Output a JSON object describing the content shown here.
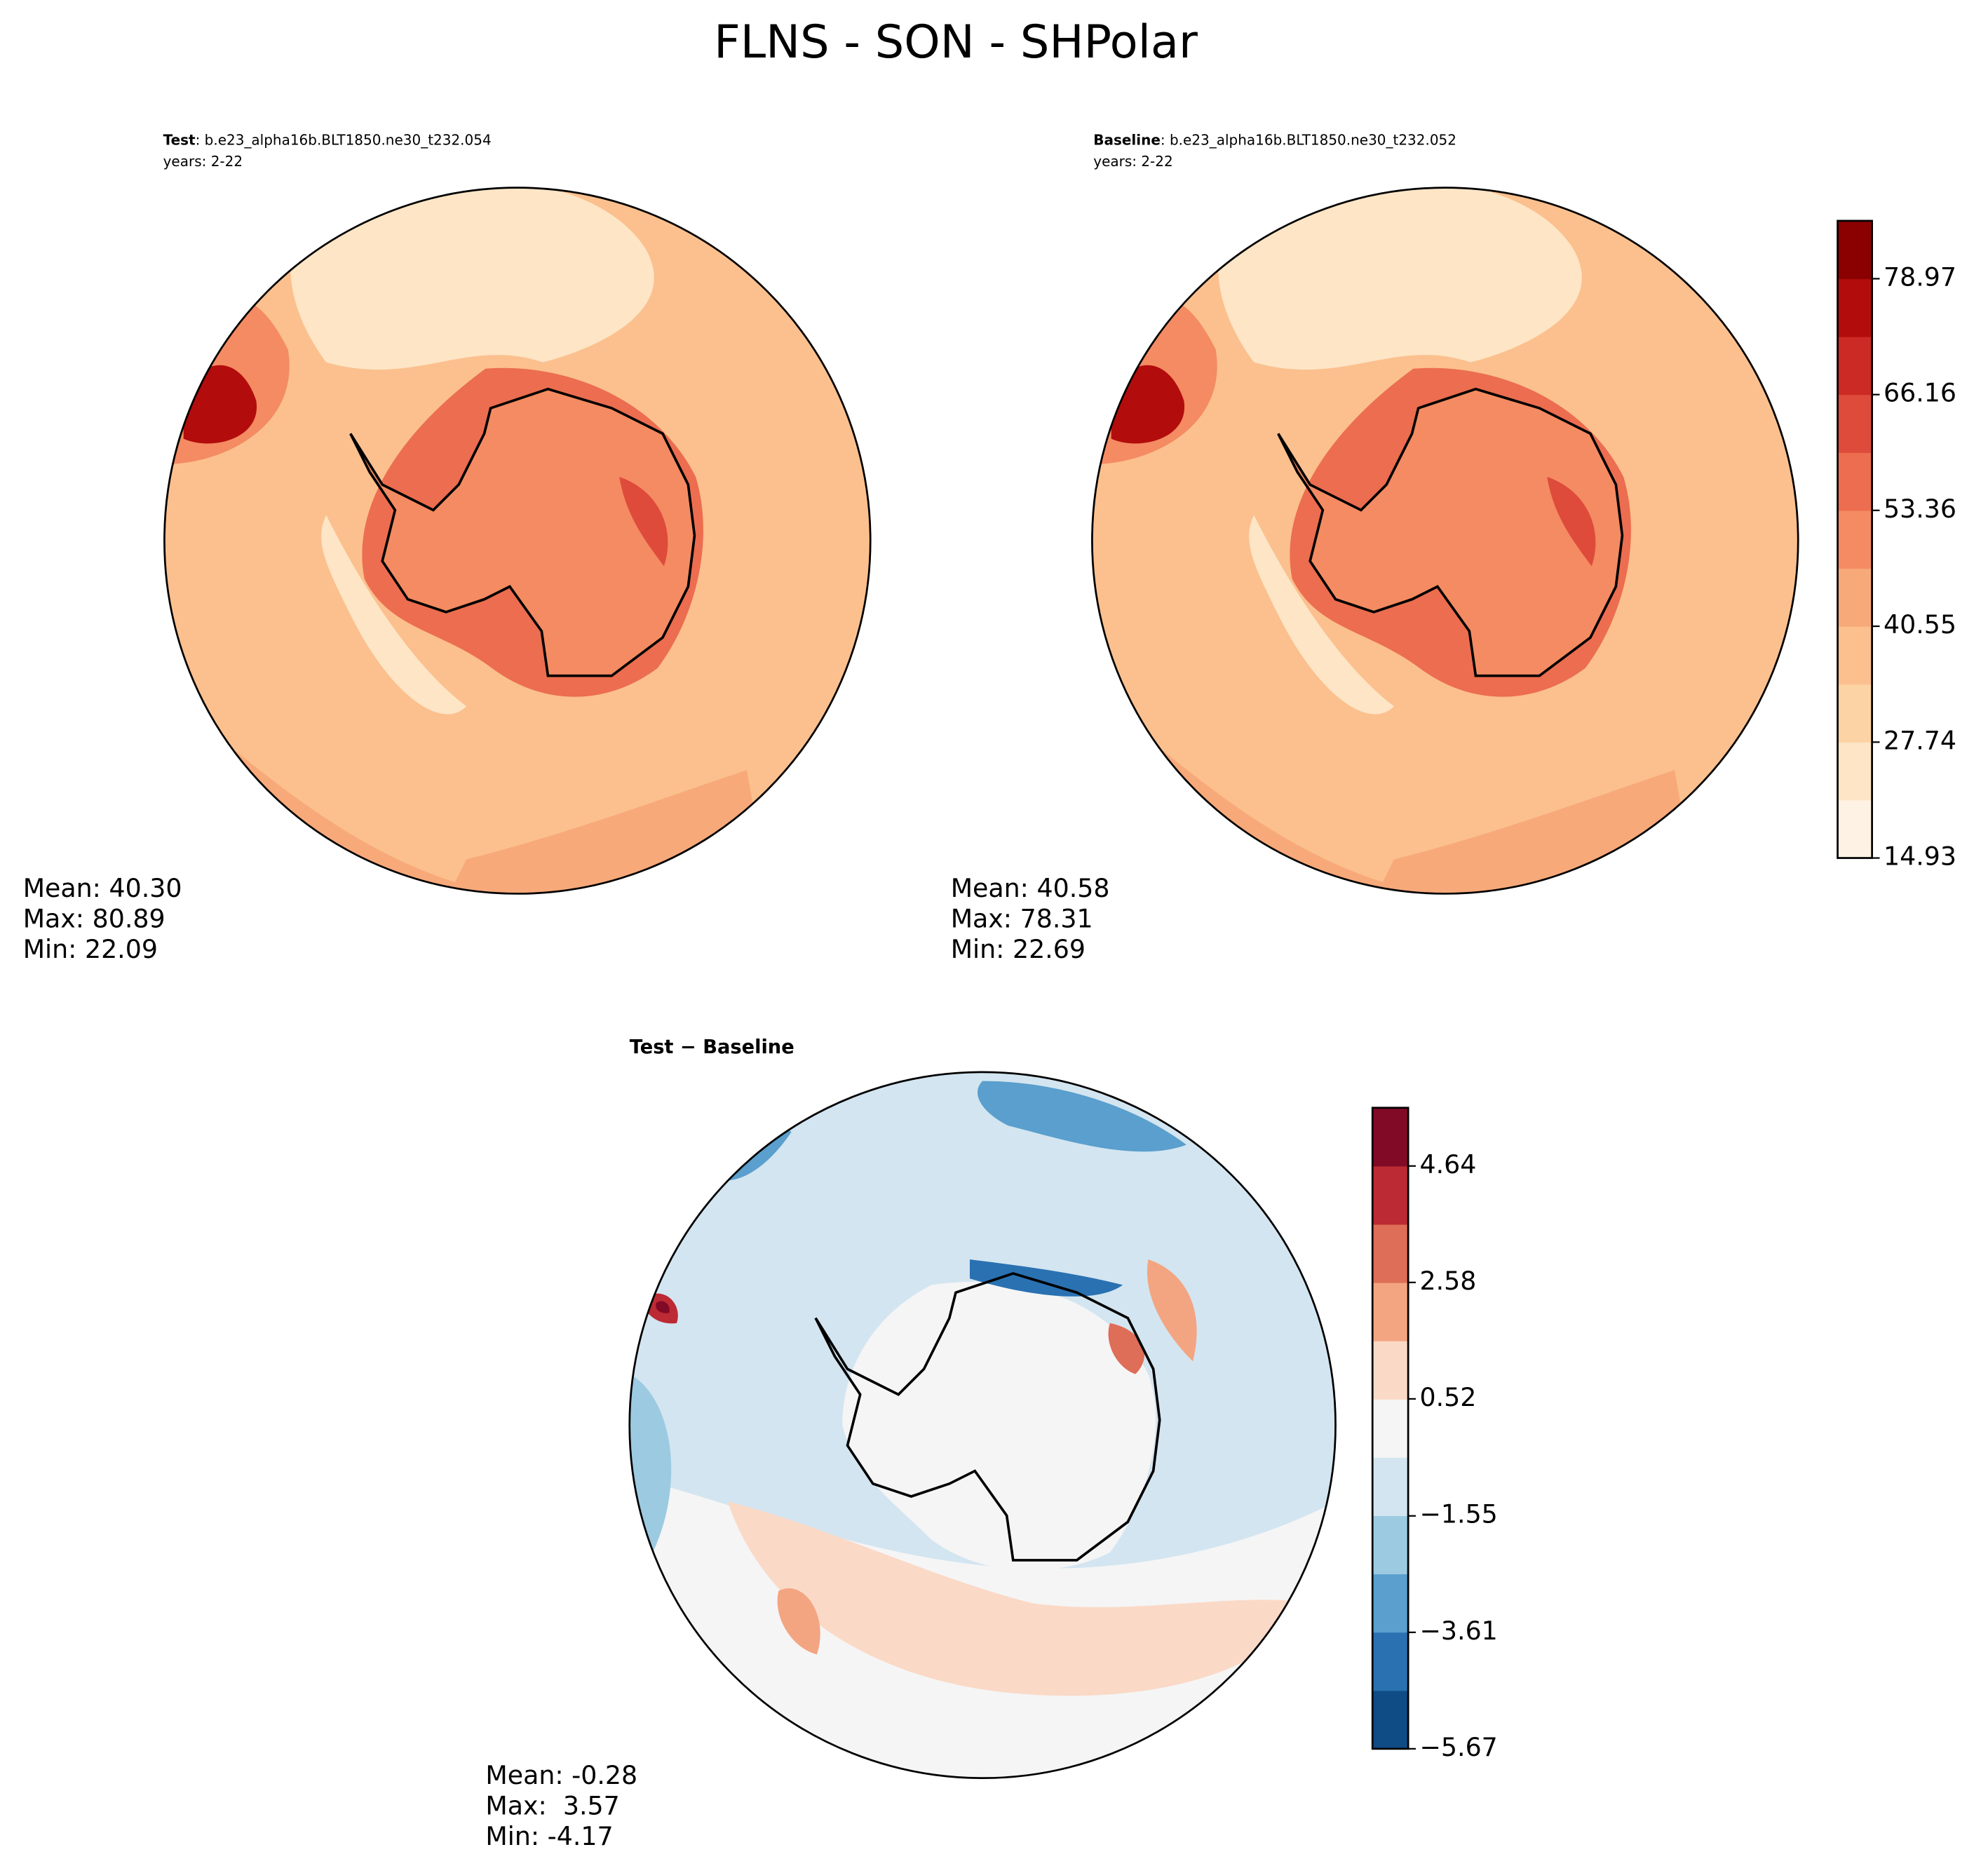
{
  "title": "FLNS - SON - SHPolar",
  "panels": [
    {
      "label": "Test",
      "case": ": b.e23_alpha16b.BLT1850.ne30_t232.054",
      "years": "years: 2-22",
      "stats": [
        "Mean: 40.30",
        "Max: 80.89",
        "Min: 22.09"
      ]
    },
    {
      "label": "Baseline",
      "case": ": b.e23_alpha16b.BLT1850.ne30_t232.052",
      "years": "years: 2-22",
      "stats": [
        "Mean: 40.58",
        "Max: 78.31",
        "Min: 22.69"
      ]
    },
    {
      "label": "Test − Baseline",
      "stats": [
        "Mean: -0.28",
        "Max:  3.57",
        "Min: -4.17"
      ]
    }
  ],
  "colorbars": [
    {
      "ylim": [
        14.93,
        85.37
      ],
      "yticks": [
        14.93,
        27.74,
        40.55,
        53.36,
        66.16,
        78.97
      ],
      "colors": [
        "#fdf2e4",
        "#fde5c6",
        "#fcd3a4",
        "#fbc08e",
        "#f8a97a",
        "#f48b62",
        "#ec6d4f",
        "#de4b3b",
        "#cc2a24",
        "#b30c0c",
        "#8b0000"
      ]
    },
    {
      "ylim": [
        -5.67,
        5.67
      ],
      "yticks": [
        {
          "value": -5.67,
          "label": "−5.67"
        },
        {
          "value": -3.61,
          "label": "−3.61"
        },
        {
          "value": -1.55,
          "label": "−1.55"
        },
        0.52,
        2.58,
        4.64
      ],
      "colors": [
        "#0f4c86",
        "#2a71b2",
        "#5a9fcd",
        "#9ccae1",
        "#d3e5f0",
        "#f5f5f5",
        "#fbd9c7",
        "#f3a582",
        "#de6e58",
        "#bc2a33",
        "#810a26"
      ]
    }
  ]
}
